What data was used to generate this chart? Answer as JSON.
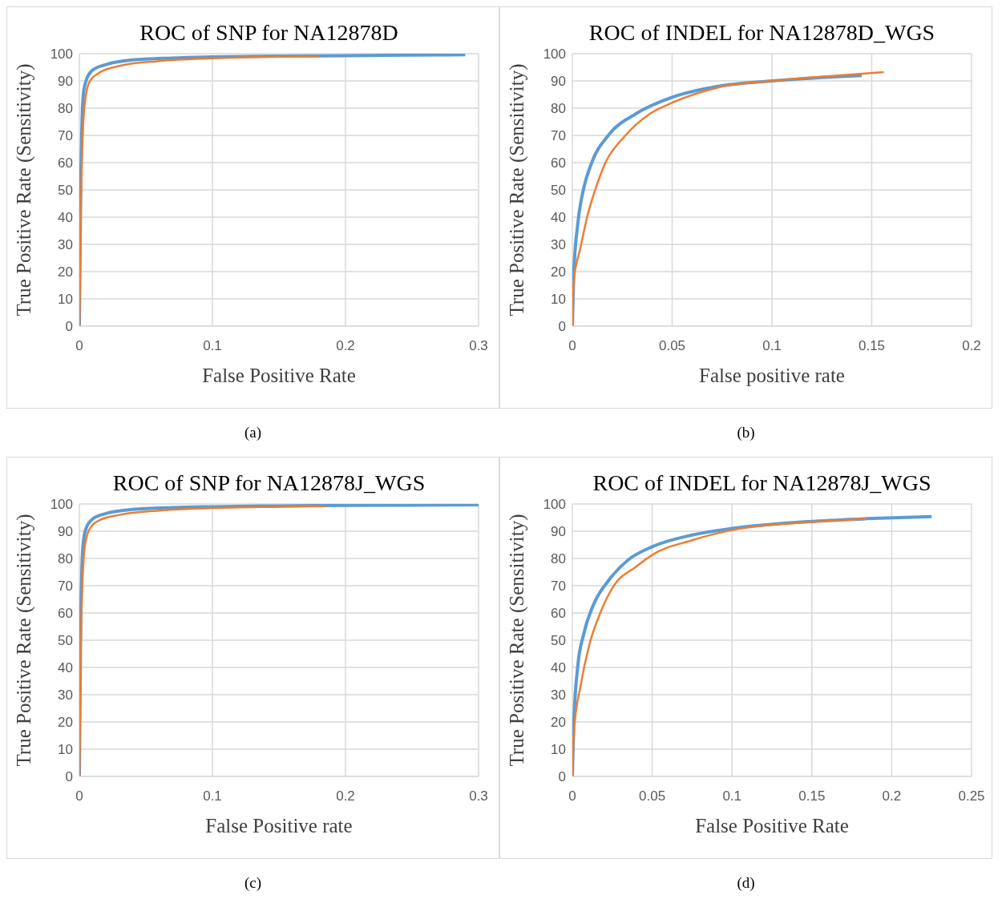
{
  "chart_data": [
    {
      "type": "line",
      "title": "ROC of SNP for NA12878D",
      "xlabel": "False Positive Rate",
      "ylabel": "True Positive Rate (Sensitivity)",
      "xlim": [
        0,
        0.3
      ],
      "xticks": [
        0,
        0.1,
        0.2,
        0.3
      ],
      "ylim": [
        0,
        100
      ],
      "yticks": [
        0,
        10,
        20,
        30,
        40,
        50,
        60,
        70,
        80,
        90,
        100
      ],
      "grid": true,
      "annotations": [
        "(a)"
      ],
      "series": [
        {
          "color": "#5b9bd5",
          "x": [
            0,
            0.001,
            0.002,
            0.003,
            0.005,
            0.01,
            0.02,
            0.04,
            0.07,
            0.1,
            0.15,
            0.2,
            0.29
          ],
          "values": [
            0,
            50,
            75,
            85,
            90,
            94,
            96,
            97.7,
            98.4,
            98.8,
            99.1,
            99.3,
            99.6
          ]
        },
        {
          "color": "#ed7d31",
          "x": [
            0,
            0.001,
            0.003,
            0.005,
            0.008,
            0.015,
            0.03,
            0.06,
            0.1,
            0.15,
            0.18
          ],
          "values": [
            0,
            40,
            75,
            85,
            90,
            93,
            95.5,
            97.3,
            98.3,
            98.9,
            99.1
          ]
        }
      ]
    },
    {
      "type": "line",
      "title": "ROC of INDEL for NA12878D_WGS",
      "xlabel": "False positive rate",
      "ylabel": "True Positive Rate (Sensitivity)",
      "xlim": [
        0,
        0.2
      ],
      "xticks": [
        0,
        0.05,
        0.1,
        0.15,
        0.2
      ],
      "ylim": [
        0,
        100
      ],
      "yticks": [
        0,
        10,
        20,
        30,
        40,
        50,
        60,
        70,
        80,
        90,
        100
      ],
      "grid": true,
      "annotations": [
        "(b)"
      ],
      "series": [
        {
          "color": "#5b9bd5",
          "x": [
            0,
            0.0007,
            0.0028,
            0.0055,
            0.0097,
            0.018,
            0.032,
            0.05,
            0.073,
            0.1,
            0.145
          ],
          "values": [
            0,
            19,
            38,
            50,
            60,
            70,
            78,
            84,
            88,
            90,
            92
          ]
        },
        {
          "color": "#ed7d31",
          "x": [
            0,
            0.0007,
            0.004,
            0.0076,
            0.011,
            0.0166,
            0.026,
            0.039,
            0.05,
            0.073,
            0.1,
            0.122,
            0.156
          ],
          "values": [
            0,
            16.5,
            28.5,
            40.6,
            49,
            60,
            69.5,
            78,
            82,
            87.6,
            90,
            91.4,
            93.2
          ]
        }
      ]
    },
    {
      "type": "line",
      "title": "ROC of SNP for NA12878J_WGS",
      "xlabel": "False Positive rate",
      "ylabel": "True Positive Rate (Sensitivity)",
      "xlim": [
        0,
        0.3
      ],
      "xticks": [
        0,
        0.1,
        0.2,
        0.3
      ],
      "ylim": [
        0,
        100
      ],
      "yticks": [
        0,
        10,
        20,
        30,
        40,
        50,
        60,
        70,
        80,
        90,
        100
      ],
      "grid": true,
      "annotations": [
        "(c)"
      ],
      "series": [
        {
          "color": "#5b9bd5",
          "x": [
            0,
            0.001,
            0.002,
            0.003,
            0.005,
            0.01,
            0.02,
            0.04,
            0.07,
            0.1,
            0.15,
            0.2,
            0.3
          ],
          "values": [
            0,
            55,
            78,
            86,
            91,
            94.5,
            96.5,
            98,
            98.7,
            99,
            99.3,
            99.5,
            99.7
          ]
        },
        {
          "color": "#ed7d31",
          "x": [
            0,
            0.001,
            0.003,
            0.005,
            0.008,
            0.015,
            0.03,
            0.06,
            0.1,
            0.15,
            0.185
          ],
          "values": [
            0,
            45,
            78,
            87,
            91,
            94,
            96,
            97.6,
            98.5,
            99,
            99.3
          ]
        }
      ]
    },
    {
      "type": "line",
      "title": "ROC of INDEL for NA12878J_WGS",
      "xlabel": "False Positive Rate",
      "ylabel": "True Positive Rate (Sensitivity)",
      "xlim": [
        0,
        0.25
      ],
      "xticks": [
        0,
        0.05,
        0.1,
        0.15,
        0.2,
        0.25
      ],
      "ylim": [
        0,
        100
      ],
      "yticks": [
        0,
        10,
        20,
        30,
        40,
        50,
        60,
        70,
        80,
        90,
        100
      ],
      "grid": true,
      "annotations": [
        "(d)"
      ],
      "series": [
        {
          "color": "#5b9bd5",
          "x": [
            0,
            0.0009,
            0.0035,
            0.007,
            0.014,
            0.0228,
            0.035,
            0.05,
            0.075,
            0.1,
            0.15,
            0.184,
            0.225
          ],
          "values": [
            0,
            19,
            41,
            52,
            64,
            72,
            79.5,
            84.3,
            88.6,
            91,
            93.6,
            94.6,
            95.4
          ]
        },
        {
          "color": "#ed7d31",
          "x": [
            0,
            0.0009,
            0.0053,
            0.0105,
            0.0175,
            0.026,
            0.04,
            0.05,
            0.075,
            0.1,
            0.15,
            0.184
          ],
          "values": [
            0,
            15.7,
            33.7,
            48,
            60,
            70,
            77,
            81.3,
            86.7,
            90.4,
            93.4,
            94.5
          ]
        }
      ]
    }
  ]
}
